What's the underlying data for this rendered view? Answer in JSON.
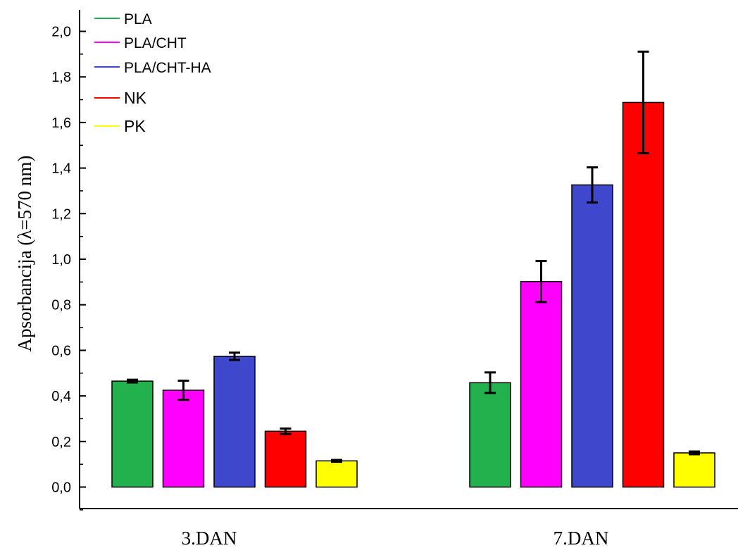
{
  "chart_data": {
    "type": "bar",
    "title": "",
    "xlabel": "",
    "ylabel": "Apsorbancija (λ=570 nm)",
    "ylim": [
      -0.09,
      2.09
    ],
    "yticks": [
      0.0,
      0.2,
      0.4,
      0.6,
      0.8,
      1.0,
      1.2,
      1.4,
      1.6,
      1.8,
      2.0
    ],
    "ytick_labels": [
      "0,0",
      "0,2",
      "0,4",
      "0,6",
      "0,8",
      "1,0",
      "1,2",
      "1,4",
      "1,6",
      "1,8",
      "2,0"
    ],
    "categories": [
      "3.DAN",
      "7.DAN"
    ],
    "series": [
      {
        "name": "PLA",
        "color": "#22b14c",
        "values": [
          0.465,
          0.458
        ],
        "errors": [
          0.006,
          0.045
        ]
      },
      {
        "name": "PLA/CHT",
        "color": "#ff00ff",
        "values": [
          0.425,
          0.902
        ],
        "errors": [
          0.042,
          0.09
        ]
      },
      {
        "name": "PLA/CHT-HA",
        "color": "#3f48cc",
        "values": [
          0.574,
          1.326
        ],
        "errors": [
          0.016,
          0.077
        ]
      },
      {
        "name": "NK",
        "color": "#ff0000",
        "values": [
          0.245,
          1.688
        ],
        "errors": [
          0.012,
          0.223
        ]
      },
      {
        "name": "PK",
        "color": "#ffff00",
        "values": [
          0.115,
          0.15
        ],
        "errors": [
          0.004,
          0.006
        ]
      }
    ],
    "legend_position": "top-left",
    "grid": false
  }
}
